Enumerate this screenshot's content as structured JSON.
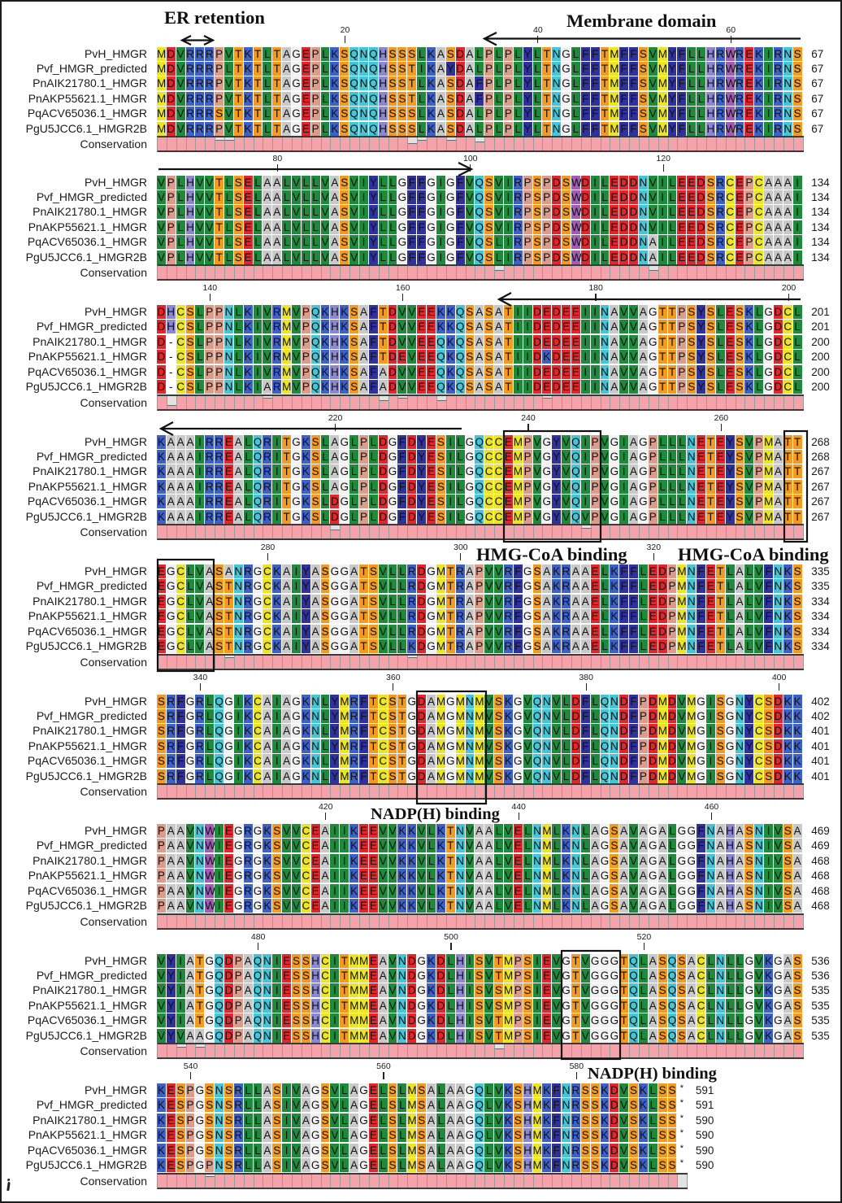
{
  "alignment": {
    "sequence_names": [
      "PvH_HMGR",
      "Pvf_HMGR_predicted",
      "PnAIK21780.1_HMGR",
      "PnAKP55621.1_HMGR",
      "PqACV65036.1_HMGR",
      "PgU5JCC6.1_HMGR2B"
    ],
    "conservation_label": "Conservation",
    "annotations": {
      "er_retention": "ER retention",
      "membrane_domain": "Membrane domain",
      "hmg_coa_binding_1": "HMG-CoA binding",
      "hmg_coa_binding_2": "HMG-CoA binding",
      "nadph_binding_1": "NADP(H) binding",
      "nadph_binding_2": "NADP(H) binding"
    },
    "blocks": [
      {
        "ticks": [
          20,
          40,
          60
        ],
        "rows": [
          "MDVRRRPVTKTLTAGEPLKSQNQHSSSLKASDALPLPLYLTNGLFFTMFFSVMYFLLHRWREKIRNS",
          "MDVRRRPLTKTLTAGEPLKSQNQHSSTIKAYDALPLPLYLTNGLFFTMFFSVMYFLLHRWREKIRNS",
          "MDVRRRPVTKTLTAGEPLKSQNQHSSTLKASDAFPLPLYLTNGLFFTMFFSVMYFLLHRWREKIRNS",
          "MDVRRRPVTKTLTAGEPLKSQNQHSSTLKASDAFPLPLYLTNGLFFTMFFSVMYFLLHRWREKIRNS",
          "MDVRRRSVTKTLTAGEPLKSQNQHSSSLKASDALPLPLYLTNGLFFTMFFSVMYFLLHRWREKIRNS",
          "MDVRRRPVTKTLTAGEPLKSQNQHSSSLKASDALPLPLYLTNGLFFTMFFSVMYFLLHRWREKIRNS"
        ],
        "ends": [
          67,
          67,
          67,
          67,
          67,
          67
        ],
        "conservation": [
          "6666665566",
          "6666666666",
          "6666663566",
          "5664666666",
          "6666666666",
          "6666666666",
          "6666666"
        ]
      },
      {
        "ticks": [
          80,
          100,
          120
        ],
        "rows": [
          "VPLHVVTLSELAALVLLVASVIYLLGFFGIGFVQSVIRPSPDSWDILEDDNVILEEDSRCEPCAAAI",
          "VPLHVVTLSELAALVLLVASVIYLLGFFGIGFVQSVIRPSPDSWDILEDDNVILEEDSRCEPCAAAI",
          "VPLHVVTLSELAALVLLVASVIYLLGFFGIGFVQSVIRPSPDSWDILEDDNVILEEDSRCEPCAAAI",
          "VPLHVVTLSELAALVLLVASVIYLLGFFGIGFVQSVIRPSPDSWDILEDDNVILEEDSRCEPCAAAI",
          "VPLHVVTLSELAALVLLVASVIYLLGFFGIGFVQSLIRPSPDSWDILEDDNAILEEDSRCEPCAAAI",
          "VPLHVVTLSELAALVLLVASVIYLLGFFGIGFVQSLIRPSPDSWDILEDDNAILEEDSRCEPCAAAI"
        ],
        "ends": [
          134,
          134,
          134,
          134,
          134,
          134
        ],
        "conservation": [
          "6666666666",
          "6666666666",
          "6666666666",
          "6666646666",
          "6666666666",
          "6466666666",
          "6666666"
        ]
      },
      {
        "ticks": [
          140,
          160,
          180,
          200
        ],
        "rows": [
          "DHCSLPPNLKIVRMVPQKHKSAFTDVVEEKKQSASATIIDEDEEIINAVVAGTTPSYSLESKLGDCL",
          "DHCSLPPNLKIVRMVPQKHKSAFTDVVEEKKQSASATIIDEDEEIINAVVAGTTPSYSLESKLGDCL",
          "D-CSLPPNLKIVRMVPQKHKSAFTDVVEEQKQSASATIIDEDEEIINAVVAGTTPSYSLESKLGDCL",
          "D-CSLPPNLKIVRMVPQKHKSAFTDEVEEQKQSASATIIDKDEEIINAVVAGTTPSYSLESKLGDCL",
          "D-CSLPPNLKIVRMVPQKHKSAFADVVEEQKQSASATIIDEDEEIINAVVAGTTPSYSLESKLGDCL",
          "D-CSLPPNLKIARMVPQKHKSAFADVVEEQKQSASATIIDEDEEIINAVVAGTTPSYSLESKLGDCL"
        ],
        "ends": [
          201,
          201,
          200,
          200,
          200,
          200
        ],
        "conservation": [
          "6266666666",
          "6566666666",
          "6664656664",
          "6666666666",
          "5666666666",
          "6666666666",
          "6666666"
        ]
      },
      {
        "ticks": [
          220,
          240,
          260
        ],
        "rows": [
          "KAAAIRREALQRITGKSLAGLPLDGFDYESILGQCCEMPVGYVQIPVGIAGPLLLNETEYSVPMATT",
          "KAAAIRREALQRITGKSLAGLPLDGFDYESILGQCCEMPVGYVQIPVGIAGPLLLNETEYSVPMATT",
          "KAAAIRREALQRITGKSLAGLPLDGFDYESILGQCCEMPVGYVQIPVGIAGPLLLNETEYSVPMATT",
          "KAAAIRREALQRITGKSLAGLPLDGFDYESILGQCCEMPVGYVQIPVGIAGPLLLNETEYSVPMATT",
          "KAAAIRREALQRITGKSLDGLPLDGFDYESILGQCCEMPVGYVQIPVGIAGPLLLNETEYSVPMATT",
          "KAAAIRREALQRITGKSLDGLPLDGFDYESILGQCCEMPVGYVQVPVGIAGPLLLNETEYSVPMATT"
        ],
        "ends": [
          268,
          268,
          267,
          267,
          267,
          267
        ],
        "conservation": [
          "6666666666",
          "6666666646",
          "6666666666",
          "6666666666",
          "6666566666",
          "6666666666",
          "6666666"
        ]
      },
      {
        "ticks": [
          280,
          300,
          320
        ],
        "rows": [
          "EGCLVASANRGCKAIYASGGATSVLLRDGMTRAPVVRFGSAKRAAELKFFLEDPMNFETLALVFNKS",
          "EGCLVASTNRGCKAIYASGGATSVLLRDGMTRAPVVRFGSAKRAAELKFFLEDPMNFETLALVFNKS",
          "EGCLVASTNRGCKAIYASGGATSVLLRDGMTRAPVVRFGSAKRAAELKFFLEDPMNFETLALVFNKS",
          "EGCLVASTNRGCKAIYASGGATSVLLRDGMTRAPVVRFGSAKRAAELKFFLEDPMNFETLALVFNKS",
          "EGCLVASTNRGCKAIYASGGATSVLLRDGMTRAPVVRFGSAKRAAELKFFLEDPMNFETLALVFNKS",
          "EGCLVASTNRGCKAIYASGGATSVLLKDGMTRAPVVRFGSAKRAAELKFFLEDPMNFETLALVFNKS"
        ],
        "ends": [
          335,
          335,
          334,
          334,
          334,
          334
        ],
        "conservation": [
          "6666666566",
          "6666666666",
          "6666665666",
          "6666666666",
          "6666666666",
          "6666666666",
          "6666666"
        ]
      },
      {
        "ticks": [
          340,
          360,
          380,
          400
        ],
        "rows": [
          "SRFGRLQGIKCAIAGKNLYMRFTCSTGDAMGMNMVSKGVQNVLDFLQNDFPDMDVMGISGNYCSDKK",
          "SRFGRLQGIKCAIAGKNLYMRFTCSTGDAMGMNMVSKGVQNVLDFLQNDFPDMDVMGISGNYCSDKK",
          "SRFGRLQGIKCAIAGKNLYMRFTCSTGDAMGMNMVSKGVQNVLDFLQNDFPDMDVMGISGNYCSDKK",
          "SRFGRLQGIKCAIAGKNLYMRFTCSTGDAMGMNMVSKGVQNVLDFLQNDFPDMDVMGISGNYCSDKK",
          "SRFGRLQGIKCAIAGKNLYMRFTCSTGDAMGMNMVSKGVQNVLDFLQNDFPDMDVMGISGNYCSDKK",
          "SRFGRLQGIKCAIAGKNLYMRFTCSTGDAMGMNMVSKGVQNVLDFLQNDFPDMDVMGISGNYCSDKK"
        ],
        "ends": [
          402,
          402,
          401,
          401,
          401,
          401
        ],
        "conservation": [
          "6666666666",
          "6666666666",
          "6666666666",
          "6666666666",
          "6666666666",
          "6666666666",
          "6666666"
        ]
      },
      {
        "ticks": [
          420,
          440,
          460
        ],
        "rows": [
          "PAAVNWIEGRGKSVVCEAIIKEEVVKKVLKTNVAALVELNMLKNLAGSAVAGALGGFNAHASNIVSA",
          "PAAVNWIEGRGKSVVCEAIIKEEVVKKVLKTNVAALVELNMLKNLAGSAVAGALGGFNAHASNIVSA",
          "PAAVNWIEGRGKSVVCEAIIKEEVVKKVLKTNVAALVELNMLKNLAGSAVAGALGGFNAHASNIVSA",
          "PAAVNWIEGRGKSVVCEAIIKEEVVKKVLKTNVAALVELNMLKNLAGSAVAGALGGFNAHASNIVSA",
          "PAAVNWIEGRGKSVVCEAIIKEEVVKKVLKTNVAALVELNMLKNLAGSAVAGALGGFNAHASNIVSA",
          "PAAVNWIEGRGKSVVCEAIIKEEVVKKVLKTNVAALVELNMLKNLAGSAVAGALGGFNAHASNIVSA"
        ],
        "ends": [
          469,
          469,
          468,
          468,
          468,
          468
        ],
        "conservation": [
          "6666666666",
          "6666666666",
          "6666666666",
          "6666666666",
          "6666666666",
          "6666666666",
          "6666666"
        ]
      },
      {
        "ticks": [
          480,
          500,
          520
        ],
        "rows": [
          "VYIATGQDPAQNIESSHCITMMEAVNDGKDLHISVTMPSIEVGTVGGGTQLASQSACLNLLGVKGAS",
          "VYIATGQDPAQNIESSHCITMMEAVNDGKDLHISVTMPSIEVGTVGGGTQLASQSACLNLLGVKGAS",
          "VYIATGQDPAQNIESSHCITMMEAVNDGKDLHISVSMPSIEVGTVGGGTQLASQSACLNLLGVKGAS",
          "VYIATGQDPAQNIESSHCITMMEAVNDGKDLHISVSMPSIEVGTVGGGTQLASQSACLNLLGVKGAS",
          "VYIATGQDPAQNIESSHCITMMEAVNDGKDLHISVTMPSIEVGTVGGGTQLASQSACLNLLGVKGAS",
          "VYVAAGQDPAQNIESSHCITMMEAVNDGKDLHISVTMPSIEVGTVGGGTQLASQSACLNLLGVKGAS"
        ],
        "ends": [
          536,
          536,
          535,
          535,
          535,
          535
        ],
        "conservation": [
          "6656566666",
          "6666666666",
          "6666666666",
          "6666646666",
          "6666666666",
          "6666666666",
          "6666666"
        ]
      },
      {
        "ticks": [
          540,
          560,
          580
        ],
        "rows": [
          "KESPGSNSRLLASIVAGSVLAGELSLMSALAAGQLVKSHMKFNRSSKDVSKLSS*",
          "KESPGSNSRLLASIVAGSVLAGELSLMSALAAGQLVKSHMKFNRSSKDVSKLSS*",
          "KESPGSNSRLLASIVAGSVLAGELSLMSALAAGQLVKSHMKFNRSSKDVSKLSS*",
          "KESPGSNSRLLASIVAGSVLAGELSLMSALAAGQLVKSHMKFNRSSKDVSKLSS*",
          "KESPGSNSRLLASIVAGSVLAGELSLMSALAAGQLVKSHMKFNRSSKDVSKLSS*",
          "KESPGPNSRLLASIVAGSVLAGELSLMSALAAGQLVKSHMKFNRSSKDVSKLSS*"
        ],
        "ends": [
          591,
          591,
          590,
          590,
          590,
          590
        ],
        "conservation": [
          "6666656666",
          "6666666666",
          "6666666666",
          "6666666666",
          "6666666666",
          "66660"
        ]
      }
    ]
  },
  "residue_colors": {
    "A": "#c9c9c9",
    "C": "#ece526",
    "D": "#e3262b",
    "E": "#e3262b",
    "F": "#2f319f",
    "G": "#f1f1f1",
    "H": "#8b87d0",
    "I": "#1f8a3c",
    "K": "#3d60c9",
    "L": "#1f8a3c",
    "M": "#ece526",
    "N": "#45c5d5",
    "P": "#dd9c8a",
    "Q": "#45c5d5",
    "R": "#3d60c9",
    "S": "#f49a20",
    "T": "#f49a20",
    "V": "#1f8a3c",
    "W": "#a35cb5",
    "Y": "#2f319f",
    "-": "#ffffff",
    "*": "#ffffff"
  },
  "conservation_colors": {
    "fill": "#f4a3aa",
    "empty": "#e2e2e2"
  }
}
